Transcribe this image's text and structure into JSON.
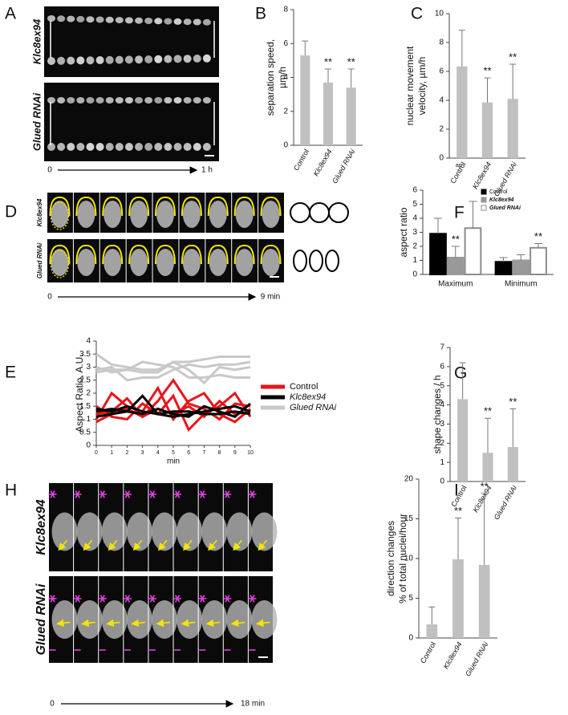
{
  "figure": {
    "A": {
      "label": "A",
      "rows": [
        "Klc8ex94",
        "Glued RNAi"
      ],
      "start": "0",
      "end": "1 h"
    },
    "D": {
      "label": "D",
      "rows": [
        "Klc8ex94",
        "Glued RNAi"
      ],
      "start": "0",
      "end": "9 min"
    },
    "H": {
      "label": "H",
      "rows": [
        "Klc8ex94",
        "Glued RNAi"
      ],
      "start": "0",
      "end": "18 min"
    }
  },
  "chart_data": [
    {
      "label": "B",
      "type": "bar",
      "ylabel": [
        "separation speed,",
        "µm/h"
      ],
      "categories": [
        "Control",
        "Klc8ex94",
        "Glued RNAi"
      ],
      "values": [
        5.3,
        3.7,
        3.4
      ],
      "errors": [
        0.85,
        0.8,
        1.1
      ],
      "significance": [
        null,
        "**",
        "**"
      ],
      "color": "#c0c0c0",
      "ylim": [
        0,
        8
      ],
      "yticks": [
        0,
        2,
        4,
        6,
        8
      ]
    },
    {
      "label": "C",
      "type": "bar",
      "ylabel": [
        "nuclear movement",
        "velocity, µm/h"
      ],
      "note": "ap",
      "categories": [
        "Control",
        "Klc8ex94",
        "Glued RNAi"
      ],
      "values": [
        6.35,
        3.85,
        4.1
      ],
      "errors": [
        2.5,
        1.7,
        2.4
      ],
      "significance": [
        null,
        "**",
        "**"
      ],
      "color": "#c0c0c0",
      "ylim": [
        0,
        10
      ],
      "yticks": [
        0,
        2,
        4,
        6,
        8,
        10
      ]
    },
    {
      "label": "F",
      "type": "bar",
      "ylabel": [
        "aspect ratio"
      ],
      "categories": [
        "Maximum",
        "Minimum"
      ],
      "series": [
        {
          "name": "Control",
          "color": "#000000",
          "edgecolor": "#000000",
          "values": [
            2.9,
            0.9
          ],
          "errors": [
            1.1,
            0.3
          ],
          "significance": [
            null,
            null
          ]
        },
        {
          "name": "Klc8ex94",
          "color": "#999999",
          "edgecolor": "#999999",
          "values": [
            1.2,
            1.0
          ],
          "errors": [
            0.8,
            0.4
          ],
          "significance": [
            "**",
            null
          ]
        },
        {
          "name": "Glued RNAi",
          "color": "#ffffff",
          "edgecolor": "#8c8c8c",
          "values": [
            3.3,
            1.9
          ],
          "errors": [
            1.9,
            0.3
          ],
          "significance": [
            null,
            "**"
          ]
        }
      ],
      "legend": "upper right",
      "ylim": [
        0,
        6
      ],
      "yticks": [
        0,
        1,
        2,
        3,
        4,
        5,
        6
      ]
    },
    {
      "label": "E",
      "type": "line",
      "ylabel": [
        "Aspect Ratio, A.U."
      ],
      "xlabel": "min",
      "x": [
        0,
        1,
        2,
        3,
        4,
        5,
        6,
        7,
        8,
        9,
        10
      ],
      "xlim": [
        0,
        10
      ],
      "xticks": [
        0,
        1,
        2,
        3,
        4,
        5,
        6,
        7,
        8,
        9,
        10
      ],
      "ylim": [
        0,
        4
      ],
      "yticks": [
        0,
        0.5,
        1,
        1.5,
        2,
        2.5,
        3,
        3.5,
        4
      ],
      "series": [
        {
          "name": "Control",
          "color": "#e8141a",
          "lines": [
            [
              1.2,
              1.3,
              1.8,
              1.1,
              1.7,
              2.5,
              1.6,
              1.4,
              1.0,
              1.6,
              1.5
            ],
            [
              1.0,
              2.0,
              1.5,
              1.3,
              2.2,
              1.0,
              1.7,
              2.0,
              1.2,
              0.9,
              1.4
            ],
            [
              1.5,
              1.1,
              1.0,
              1.6,
              1.2,
              1.9,
              0.6,
              1.2,
              1.5,
              2.0,
              1.1
            ],
            [
              0.9,
              1.2,
              1.4,
              1.1,
              1.4,
              1.2,
              1.5,
              1.1,
              1.7,
              1.2,
              1.3
            ]
          ]
        },
        {
          "name": "Klc8ex94",
          "color": "#000000",
          "lines": [
            [
              1.3,
              1.4,
              1.3,
              1.9,
              1.2,
              1.3,
              1.3,
              1.2,
              1.2,
              1.3,
              1.2
            ],
            [
              1.1,
              1.2,
              1.3,
              1.2,
              1.4,
              1.2,
              1.1,
              1.5,
              1.3,
              1.1,
              1.6
            ],
            [
              1.4,
              1.3,
              1.5,
              1.3,
              1.2,
              1.1,
              1.2,
              1.3,
              1.4,
              1.5,
              1.3
            ]
          ]
        },
        {
          "name": "Glued RNAi",
          "color": "#c8c8c8",
          "lines": [
            [
              3.5,
              3.1,
              3.0,
              2.9,
              2.9,
              3.2,
              3.2,
              3.3,
              3.4,
              3.4,
              3.4
            ],
            [
              3.0,
              2.8,
              2.9,
              3.2,
              3.1,
              3.0,
              2.6,
              2.6,
              2.7,
              2.6,
              2.6
            ],
            [
              2.9,
              3.0,
              2.5,
              2.6,
              2.6,
              2.9,
              3.1,
              3.0,
              3.1,
              3.1,
              3.2
            ],
            [
              2.8,
              2.9,
              2.9,
              2.8,
              2.8,
              3.2,
              2.9,
              2.4,
              3.0,
              2.9,
              3.0
            ]
          ]
        }
      ]
    },
    {
      "label": "G",
      "type": "bar",
      "ylabel": [
        "shape changes / h"
      ],
      "categories": [
        "Control",
        "Klc8ex94",
        "Glued RNAi"
      ],
      "values": [
        4.3,
        1.5,
        1.8
      ],
      "errors": [
        1.9,
        1.8,
        2.0
      ],
      "significance": [
        null,
        "**",
        "**"
      ],
      "color": "#c0c0c0",
      "ylim": [
        0,
        7
      ],
      "yticks": [
        0,
        1,
        2,
        3,
        4,
        5,
        6,
        7
      ]
    },
    {
      "label": "I",
      "type": "bar",
      "ylabel": [
        "direction changes",
        "% of total nuclei/hour"
      ],
      "categories": [
        "Control",
        "Klc8ex94",
        "Glued RNAi"
      ],
      "values": [
        1.7,
        9.9,
        9.2
      ],
      "errors": [
        2.2,
        5.2,
        9.0
      ],
      "significance": [
        null,
        "**",
        "**"
      ],
      "color": "#c0c0c0",
      "ylim": [
        0,
        20
      ],
      "yticks": [
        0,
        5,
        10,
        15,
        20
      ]
    }
  ]
}
